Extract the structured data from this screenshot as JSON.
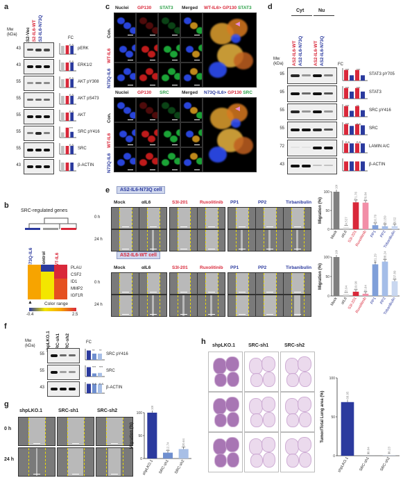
{
  "labels": {
    "a": "a",
    "b": "b",
    "c": "c",
    "d": "d",
    "e": "e",
    "f": "f",
    "g": "g",
    "h": "h"
  },
  "panel_a": {
    "col_headers": [
      "AS2-Vec",
      "AS2-IL6-WT",
      "AS2-IL6-N73Q"
    ],
    "mw_label": "Mw (kDa)",
    "fc_label": "FC",
    "markers": [
      "43",
      "43",
      "55",
      "55",
      "55",
      "55",
      "55",
      "43"
    ],
    "rows": [
      "pERK",
      "ERK1/2",
      "AKT pY308",
      "AKT pS473",
      "AKT",
      "SRC pY416",
      "SRC",
      "β-ACTIN"
    ],
    "stats": [
      "n.s.",
      "n.s.",
      "n.s.",
      "n.s.",
      "n.s.",
      "***",
      "n.s."
    ],
    "colors": {
      "vec": "#bfbfbf",
      "wt": "#d9283a",
      "n73q": "#2b3a9e"
    }
  },
  "panel_b": {
    "title": "SRC-regulated genes",
    "cols": [
      "N73Q-IL6",
      "Control",
      "WT-IL6"
    ],
    "genes": [
      "PLAU",
      "CSF2",
      "ID1",
      "MMP2",
      "IGF1R"
    ],
    "legend_title": "Color range",
    "legend_min": "-0.4",
    "legend_max": "2.5"
  },
  "panel_c": {
    "top_headers": [
      "Nuclei",
      "GP130",
      "STAT3",
      "Merged"
    ],
    "top_zoom_label": [
      "WT-IL6>",
      "GP130",
      "STAT3"
    ],
    "bottom_headers": [
      "Nuclei",
      "GP130",
      "SRC",
      "Merged"
    ],
    "bottom_zoom_label": [
      "N73Q-IL6>",
      "GP130",
      "SRC"
    ],
    "row_labels": [
      "Con.",
      "WT-IL6",
      "N73Q-IL6"
    ]
  },
  "panel_d": {
    "groups": [
      "Cyt",
      "Nu"
    ],
    "col_headers": [
      "AS2-IL6-WT",
      "AS2-IL6-N73Q",
      "AS2-IL6-WT",
      "AS2-IL6-N73Q"
    ],
    "mw_label": "Mw (kDa)",
    "fc_label": "FC",
    "markers": [
      "95",
      "95",
      "55",
      "55",
      "72",
      "43"
    ],
    "rows": [
      "STAT3 pY705",
      "STAT3",
      "SRC pY416",
      "SRC",
      "LAMIN A/C",
      "β-ACTIN"
    ],
    "stats": [
      [
        "***",
        "***"
      ],
      [
        "***",
        "***"
      ],
      [
        "***",
        "**"
      ],
      [
        "***",
        "n.s."
      ],
      [
        "n.s.",
        "n.s."
      ]
    ]
  },
  "panel_e": {
    "tags": [
      "AS2-IL6-N73Q cell",
      "AS2-IL6-WT cell"
    ],
    "treatments": [
      "Mock",
      "αIL6",
      "S3I-201",
      "Ruxolitinib",
      "PP1",
      "PP2",
      "Tirbanibulin"
    ],
    "time_labels": [
      "0 h",
      "24 h"
    ],
    "chart1": {
      "type": "bar",
      "ylabel": "Migration (%)",
      "categories": [
        "Mock",
        "αIL6",
        "S3I-201",
        "Ruxolitinib",
        "PP1",
        "PP2",
        "Tirbanibulin"
      ],
      "values": [
        100,
        4.527,
        71.76,
        70.84,
        10.79,
        8.159,
        8.52
      ],
      "value_labels": [
        "100",
        "4.527",
        "71.76",
        "70.84",
        "10.79",
        "8.159",
        "8.52"
      ],
      "stats": [
        "",
        "***",
        "***",
        "***",
        "***",
        "***",
        "***"
      ],
      "ylim": [
        0,
        100
      ],
      "yticks": [
        "0",
        "50",
        "100"
      ]
    },
    "chart2": {
      "type": "bar",
      "ylabel": "Migration (%)",
      "categories": [
        "Mock",
        "αIL6",
        "S3I-201",
        "Ruxolitinib",
        "PP1",
        "PP2",
        "Tirbanibulin"
      ],
      "values": [
        100,
        3.94,
        10.9,
        5.64,
        81.29,
        88.24,
        37.89
      ],
      "value_labels": [
        "100",
        "3.94",
        "10.90",
        "5.64",
        "81.29",
        "88.24",
        "37.89"
      ],
      "stats": [
        "",
        "***",
        "***",
        "***",
        "**",
        "***",
        "***"
      ],
      "ylim": [
        0,
        100
      ],
      "yticks": [
        "0",
        "50",
        "100"
      ]
    }
  },
  "panel_f": {
    "col_headers": [
      "shpLKO.1",
      "SRC-sh1",
      "SRC-sh2"
    ],
    "mw_label": "Mw (kDa)",
    "fc_label": "FC",
    "markers": [
      "55",
      "55",
      "43"
    ],
    "rows": [
      "SRC pY416",
      "SRC",
      "β-ACTIN"
    ],
    "stats": [
      [
        "**",
        "**"
      ],
      [
        "***",
        "***"
      ],
      [
        "n.s.",
        "n.s."
      ]
    ]
  },
  "panel_g": {
    "col_headers": [
      "shpLKO.1",
      "SRC-sh1",
      "SRC-sh2"
    ],
    "time_labels": [
      "0 h",
      "24 h"
    ],
    "chart": {
      "type": "bar",
      "ylabel": "Migration (%)",
      "categories": [
        "shpLKO.1",
        "SRC-sh1",
        "SRC-sh2"
      ],
      "values": [
        100,
        12.74,
        20.64
      ],
      "value_labels": [
        "100",
        "12.74",
        "20.64"
      ],
      "stats": [
        "",
        "***",
        "***"
      ],
      "ylim": [
        0,
        100
      ],
      "yticks": [
        "0",
        "50",
        "100"
      ]
    }
  },
  "panel_h": {
    "col_headers": [
      "shpLKO.1",
      "SRC-sh1",
      "SRC-sh2"
    ],
    "chart": {
      "type": "bar",
      "ylabel": "Tumor/Total Lung area (%)",
      "categories": [
        "shpLKO.1",
        "SRC-sh1",
        "SRC-sh2"
      ],
      "values": [
        68.95,
        0.04,
        0.23
      ],
      "value_labels": [
        "68.95",
        "0.04",
        "0.23"
      ],
      "stats": [
        "",
        "**",
        "**"
      ],
      "ylim": [
        0,
        100
      ],
      "yticks": [
        "0",
        "50",
        "100"
      ]
    }
  }
}
